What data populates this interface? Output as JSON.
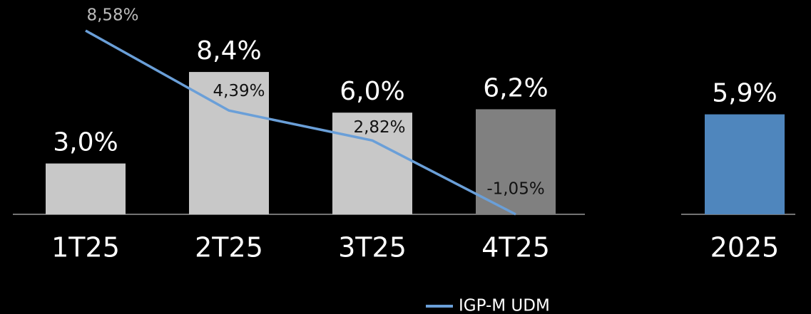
{
  "chart_data": {
    "type": "bar",
    "categories": [
      "1T25",
      "2T25",
      "3T25",
      "4T25",
      "2025"
    ],
    "bars": {
      "values": [
        3.0,
        8.4,
        6.0,
        6.2,
        5.9
      ],
      "value_labels": [
        "3,0%",
        "8,4%",
        "6,0%",
        "6,2%",
        "5,9%"
      ],
      "colors": [
        "#c8c8c8",
        "#c8c8c8",
        "#c8c8c8",
        "#808080",
        "#4f86bd"
      ]
    },
    "line": {
      "name": "IGP-M UDM",
      "color": "#6a9fd8",
      "axis": "y2",
      "values": [
        8.58,
        4.39,
        2.82,
        -1.05,
        null
      ],
      "value_labels": [
        "8,58%",
        "4,39%",
        "2,82%",
        "-1,05%",
        null
      ]
    },
    "ylim": [
      0,
      12
    ],
    "y2lim": [
      -1.05,
      9.61
    ]
  }
}
